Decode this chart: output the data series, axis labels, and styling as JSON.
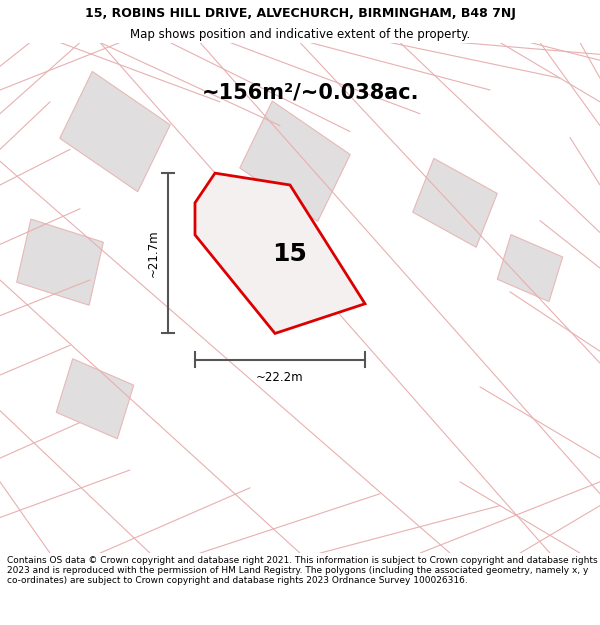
{
  "title_line1": "15, ROBINS HILL DRIVE, ALVECHURCH, BIRMINGHAM, B48 7NJ",
  "title_line2": "Map shows position and indicative extent of the property.",
  "footer": "Contains OS data © Crown copyright and database right 2021. This information is subject to Crown copyright and database rights 2023 and is reproduced with the permission of HM Land Registry. The polygons (including the associated geometry, namely x, y co-ordinates) are subject to Crown copyright and database rights 2023 Ordnance Survey 100026316.",
  "area_text": "~156m²/~0.038ac.",
  "property_number": "15",
  "dim_width": "~22.2m",
  "dim_height": "~21.7m",
  "map_bg": "#faf8f8",
  "highlight_color": "#dd0000",
  "highlight_fill": "#f5f0f0",
  "neighbor_fill": "#e0dede",
  "neighbor_edge": "#e8b8b8",
  "road_color": "#e8b0b0",
  "dim_color": "#555555",
  "title_fontsize": 9.0,
  "subtitle_fontsize": 8.5,
  "area_fontsize": 15,
  "num_fontsize": 18,
  "dim_fontsize": 8.5,
  "footer_fontsize": 6.5
}
